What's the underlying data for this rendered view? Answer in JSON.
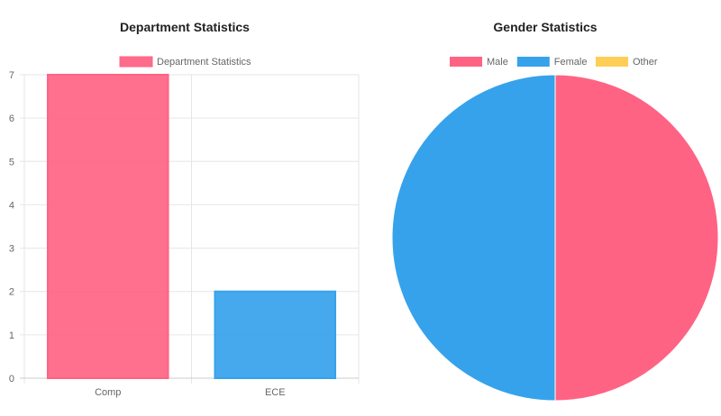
{
  "chart_data": [
    {
      "type": "bar",
      "title": "Department Statistics",
      "legend": [
        "Department Statistics"
      ],
      "legend_position": "top",
      "categories": [
        "Comp",
        "ECE"
      ],
      "series": [
        {
          "name": "Department Statistics",
          "values": [
            7,
            2
          ]
        }
      ],
      "bar_colors": [
        "#ff6384",
        "#36a2eb"
      ],
      "ylim": [
        0,
        7
      ],
      "yticks": [
        0,
        1,
        2,
        3,
        4,
        5,
        6,
        7
      ],
      "grid": true
    },
    {
      "type": "pie",
      "title": "Gender Statistics",
      "legend_position": "top",
      "labels": [
        "Male",
        "Female",
        "Other"
      ],
      "values": [
        1,
        1,
        0
      ],
      "colors": [
        "#ff6384",
        "#36a2eb",
        "#ffce56"
      ]
    }
  ]
}
